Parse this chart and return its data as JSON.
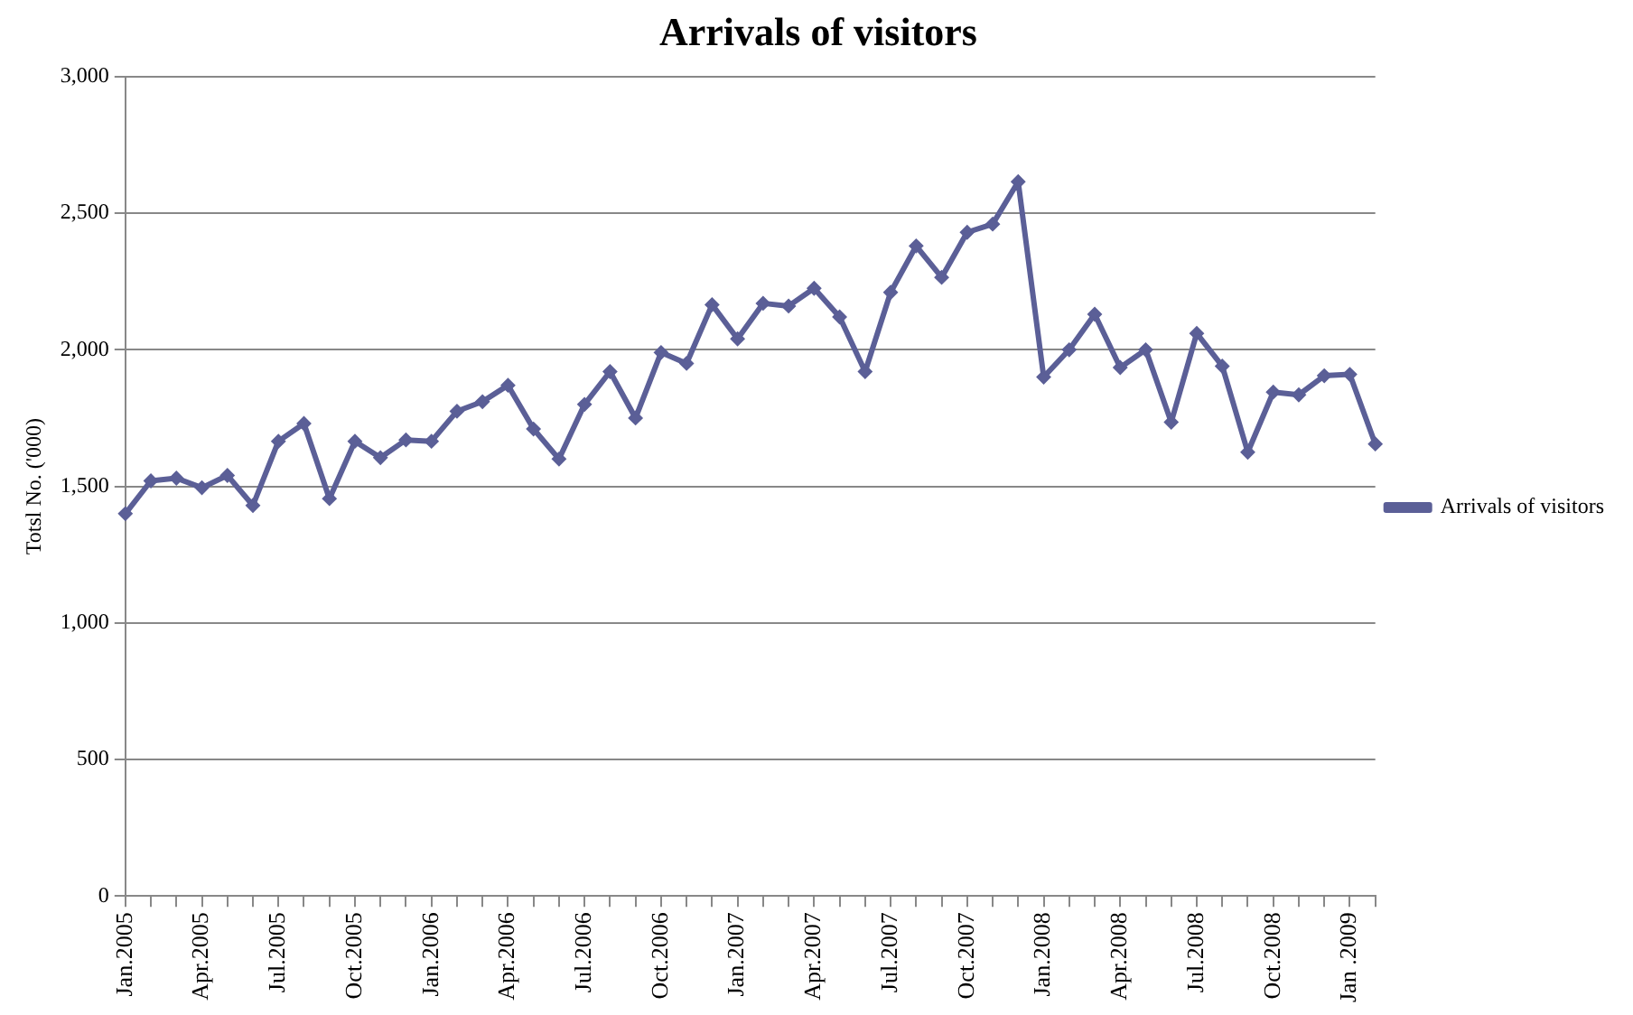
{
  "chart_data": {
    "type": "line",
    "title": "Arrivals of visitors",
    "ylabel": "Totsl No. ('000)",
    "categories": [
      "Jan.2005",
      null,
      null,
      "Apr.2005",
      null,
      null,
      "Jul.2005",
      null,
      null,
      "Oct.2005",
      null,
      null,
      "Jan.2006",
      null,
      null,
      "Apr.2006",
      null,
      null,
      "Jul.2006",
      null,
      null,
      "Oct.2006",
      null,
      null,
      "Jan.2007",
      null,
      null,
      "Apr.2007",
      null,
      null,
      "Jul.2007",
      null,
      null,
      "Oct.2007",
      null,
      null,
      "Jan.2008",
      null,
      null,
      "Apr.2008",
      null,
      null,
      "Jul.2008",
      null,
      null,
      "Oct.2008",
      null,
      null,
      "Jan .2009",
      null
    ],
    "series": [
      {
        "name": "Arrivals of visitors",
        "color": "#5b5f97",
        "values": [
          1400,
          1520,
          1530,
          1495,
          1540,
          1430,
          1665,
          1730,
          1455,
          1665,
          1605,
          1670,
          1665,
          1775,
          1810,
          1870,
          1710,
          1600,
          1800,
          1920,
          1750,
          1990,
          1950,
          2165,
          2040,
          2170,
          2160,
          2225,
          2120,
          1920,
          2210,
          2380,
          2265,
          2430,
          2460,
          2615,
          1900,
          2000,
          2130,
          1935,
          2000,
          1735,
          2060,
          1940,
          1625,
          1845,
          1835,
          1905,
          1910,
          1655
        ]
      }
    ],
    "ylim": [
      0,
      3000
    ],
    "yticks": [
      {
        "value": 0,
        "label": "0"
      },
      {
        "value": 500,
        "label": "500"
      },
      {
        "value": 1000,
        "label": "1,000"
      },
      {
        "value": 1500,
        "label": "1,500"
      },
      {
        "value": 2000,
        "label": "2,000"
      },
      {
        "value": 2500,
        "label": "2,500"
      },
      {
        "value": 3000,
        "label": "3,000"
      }
    ],
    "grid": "y",
    "legend": "right",
    "marker": "diamond",
    "line_style": "solid"
  }
}
